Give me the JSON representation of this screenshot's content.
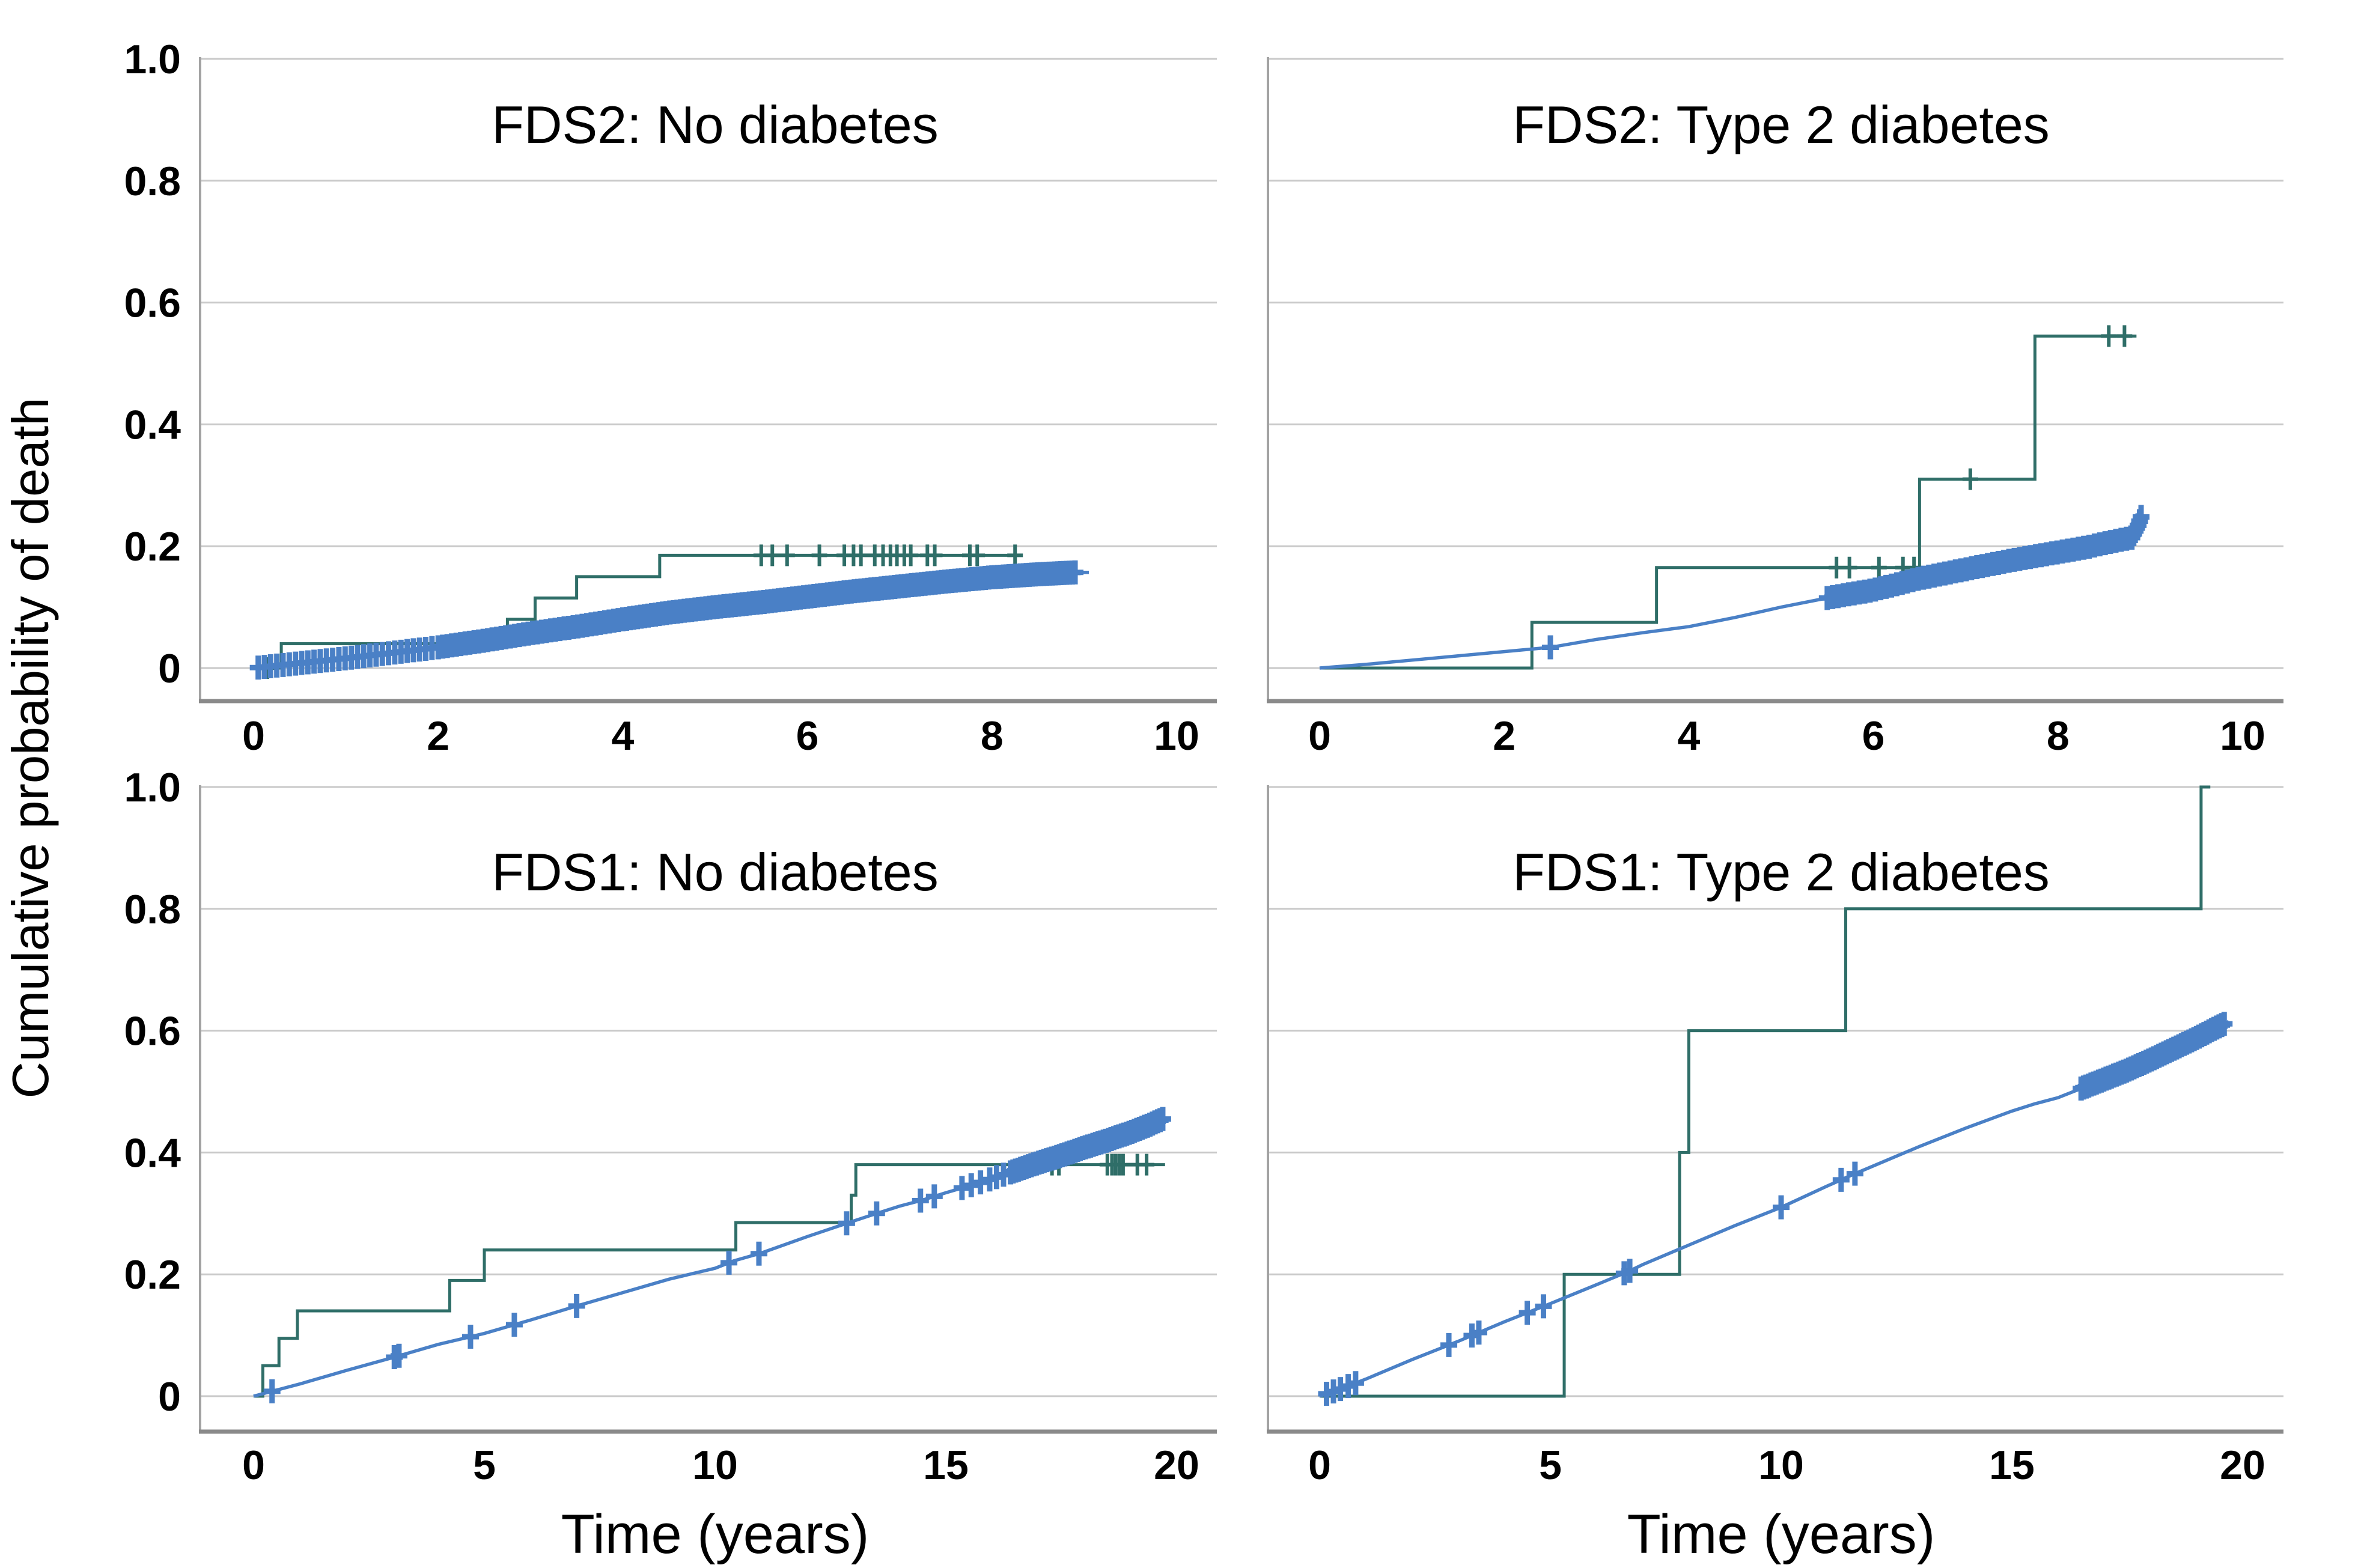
{
  "figure": {
    "y_axis_label": "Cumulative probability of death",
    "x_axis_label": "Time (years)",
    "y_ticks": [
      {
        "value": 1.0,
        "label": "1.0"
      },
      {
        "value": 0.8,
        "label": "0.8"
      },
      {
        "value": 0.6,
        "label": "0.6"
      },
      {
        "value": 0.4,
        "label": "0.4"
      },
      {
        "value": 0.2,
        "label": "0.2"
      },
      {
        "value": 0.0,
        "label": "0"
      }
    ],
    "colors": {
      "step_curve": "#2f6e68",
      "smooth_curve": "#4a80c6",
      "gridline": "#c9c9c9",
      "x_axis_line": "#8a8a8a",
      "y_axis_line": "#a3a3a3",
      "text": "#000000",
      "background": "#ffffff"
    },
    "legend": null,
    "grid": true
  },
  "chart_data": [
    {
      "type": "line",
      "title": "FDS2: No diabetes",
      "xlabel": "",
      "ylabel": "Cumulative probability of death",
      "xlim": [
        0,
        10.5
      ],
      "ylim": [
        0,
        1.0
      ],
      "x_ticks": [
        0,
        2,
        4,
        6,
        8,
        10
      ],
      "y_ticks": [
        0,
        0.2,
        0.4,
        0.6,
        0.8,
        1.0
      ],
      "series": [
        {
          "name": "observed step curve (dark teal)",
          "style": "step",
          "color": "#2f6e68",
          "points": [
            [
              0,
              0
            ],
            [
              0.3,
              0.04
            ],
            [
              2.75,
              0.08
            ],
            [
              3.05,
              0.115
            ],
            [
              3.5,
              0.15
            ],
            [
              4.4,
              0.185
            ],
            [
              8.3,
              0.185
            ]
          ],
          "censor_xs": [
            0.15,
            5.5,
            5.62,
            5.78,
            6.13,
            6.4,
            6.5,
            6.58,
            6.73,
            6.82,
            6.9,
            6.97,
            7.05,
            7.12,
            7.3,
            7.38,
            7.76,
            7.84,
            8.25
          ],
          "censor_bands": []
        },
        {
          "name": "predicted smooth curve (blue)",
          "style": "line",
          "color": "#4a80c6",
          "points": [
            [
              0,
              0
            ],
            [
              0.5,
              0.008
            ],
            [
              1,
              0.016
            ],
            [
              1.5,
              0.025
            ],
            [
              2,
              0.034
            ],
            [
              2.5,
              0.045
            ],
            [
              3,
              0.057
            ],
            [
              3.5,
              0.068
            ],
            [
              4,
              0.08
            ],
            [
              4.5,
              0.091
            ],
            [
              5,
              0.1
            ],
            [
              5.5,
              0.108
            ],
            [
              6,
              0.117
            ],
            [
              6.5,
              0.126
            ],
            [
              7,
              0.134
            ],
            [
              7.5,
              0.142
            ],
            [
              8,
              0.149
            ],
            [
              8.5,
              0.154
            ],
            [
              8.9,
              0.157
            ],
            [
              9.05,
              0.157
            ]
          ],
          "censor_xs": [],
          "censor_bands": [
            {
              "from": 0.05,
              "to": 2.0,
              "n": 30
            },
            {
              "from": 2.0,
              "to": 4.0,
              "n": 42
            },
            {
              "from": 4.0,
              "to": 6.0,
              "n": 52
            },
            {
              "from": 6.0,
              "to": 8.0,
              "n": 56
            },
            {
              "from": 8.0,
              "to": 8.9,
              "n": 30
            }
          ]
        }
      ]
    },
    {
      "type": "line",
      "title": "FDS2: Type 2 diabetes",
      "xlabel": "",
      "ylabel": "Cumulative probability of death",
      "xlim": [
        0,
        10.5
      ],
      "ylim": [
        0,
        1.0
      ],
      "x_ticks": [
        0,
        2,
        4,
        6,
        8,
        10
      ],
      "y_ticks": [
        0,
        0.2,
        0.4,
        0.6,
        0.8,
        1.0
      ],
      "series": [
        {
          "name": "observed step curve (dark teal)",
          "style": "step",
          "color": "#2f6e68",
          "points": [
            [
              0,
              0
            ],
            [
              2.3,
              0.075
            ],
            [
              3.65,
              0.165
            ],
            [
              6.5,
              0.31
            ],
            [
              7.75,
              0.545
            ],
            [
              8.85,
              0.545
            ]
          ],
          "censor_xs": [
            5.6,
            5.74,
            6.06,
            6.32,
            6.44,
            7.05,
            8.55,
            8.72
          ],
          "censor_bands": []
        },
        {
          "name": "predicted smooth curve (blue)",
          "style": "line",
          "color": "#4a80c6",
          "points": [
            [
              0,
              0
            ],
            [
              0.5,
              0.006
            ],
            [
              1,
              0.013
            ],
            [
              1.5,
              0.02
            ],
            [
              2,
              0.027
            ],
            [
              2.5,
              0.034
            ],
            [
              3,
              0.047
            ],
            [
              3.5,
              0.058
            ],
            [
              4,
              0.068
            ],
            [
              4.5,
              0.083
            ],
            [
              5,
              0.1
            ],
            [
              5.5,
              0.115
            ],
            [
              6,
              0.128
            ],
            [
              6.5,
              0.147
            ],
            [
              7,
              0.162
            ],
            [
              7.5,
              0.177
            ],
            [
              8,
              0.19
            ],
            [
              8.3,
              0.198
            ],
            [
              8.6,
              0.208
            ],
            [
              8.8,
              0.214
            ],
            [
              8.87,
              0.235
            ],
            [
              8.9,
              0.248
            ]
          ],
          "censor_xs": [
            2.5
          ],
          "censor_bands": [
            {
              "from": 5.5,
              "to": 8.8,
              "n": 58
            },
            {
              "from": 8.82,
              "to": 8.9,
              "n": 6
            }
          ]
        }
      ]
    },
    {
      "type": "line",
      "title": "FDS1: No diabetes",
      "xlabel": "Time (years)",
      "ylabel": "Cumulative probability of death",
      "xlim": [
        0,
        21
      ],
      "ylim": [
        0,
        1.0
      ],
      "x_ticks": [
        0,
        5,
        10,
        15,
        20
      ],
      "y_ticks": [
        0,
        0.2,
        0.4,
        0.6,
        0.8,
        1.0
      ],
      "series": [
        {
          "name": "observed step curve (dark teal)",
          "style": "step",
          "color": "#2f6e68",
          "points": [
            [
              0,
              0
            ],
            [
              0.2,
              0.05
            ],
            [
              0.55,
              0.095
            ],
            [
              0.95,
              0.14
            ],
            [
              4.25,
              0.19
            ],
            [
              5.0,
              0.24
            ],
            [
              10.45,
              0.285
            ],
            [
              12.95,
              0.33
            ],
            [
              13.05,
              0.38
            ],
            [
              19.75,
              0.38
            ]
          ],
          "censor_xs": [
            17.3,
            17.45,
            18.5,
            18.6,
            18.68,
            18.76,
            18.84,
            19.15,
            19.35
          ],
          "censor_bands": []
        },
        {
          "name": "predicted smooth curve (blue)",
          "style": "line",
          "color": "#4a80c6",
          "points": [
            [
              0,
              0
            ],
            [
              0.4,
              0.008
            ],
            [
              1,
              0.02
            ],
            [
              2,
              0.042
            ],
            [
              3,
              0.063
            ],
            [
              4,
              0.085
            ],
            [
              5,
              0.103
            ],
            [
              6,
              0.125
            ],
            [
              7,
              0.148
            ],
            [
              8,
              0.17
            ],
            [
              9,
              0.192
            ],
            [
              10,
              0.21
            ],
            [
              10.4,
              0.222
            ],
            [
              11,
              0.235
            ],
            [
              12,
              0.262
            ],
            [
              12.9,
              0.285
            ],
            [
              13.5,
              0.3
            ],
            [
              14,
              0.312
            ],
            [
              14.5,
              0.322
            ],
            [
              15,
              0.334
            ],
            [
              15.5,
              0.345
            ],
            [
              16,
              0.357
            ],
            [
              16.5,
              0.37
            ],
            [
              17,
              0.383
            ],
            [
              17.5,
              0.395
            ],
            [
              18,
              0.408
            ],
            [
              18.5,
              0.42
            ],
            [
              19,
              0.433
            ],
            [
              19.4,
              0.445
            ],
            [
              19.7,
              0.455
            ]
          ],
          "censor_xs": [
            0.4,
            3.05,
            3.15,
            4.7,
            5.65,
            7.0,
            10.3,
            10.95,
            12.85,
            13.5,
            14.45,
            14.75,
            15.35,
            15.55,
            15.75,
            15.95,
            16.1,
            16.25
          ],
          "censor_bands": [
            {
              "from": 16.4,
              "to": 19.7,
              "n": 60
            }
          ]
        }
      ]
    },
    {
      "type": "line",
      "title": "FDS1: Type 2 diabetes",
      "xlabel": "Time (years)",
      "ylabel": "Cumulative probability of death",
      "xlim": [
        0,
        21
      ],
      "ylim": [
        0,
        1.0
      ],
      "x_ticks": [
        0,
        5,
        10,
        15,
        20
      ],
      "y_ticks": [
        0,
        0.2,
        0.4,
        0.6,
        0.8,
        1.0
      ],
      "series": [
        {
          "name": "observed step curve (dark teal)",
          "style": "step",
          "color": "#2f6e68",
          "points": [
            [
              0,
              0
            ],
            [
              5.3,
              0.2
            ],
            [
              7.8,
              0.4
            ],
            [
              8.0,
              0.6
            ],
            [
              11.4,
              0.8
            ],
            [
              19.1,
              1.0
            ],
            [
              19.3,
              1.0
            ]
          ],
          "censor_xs": [],
          "censor_bands": []
        },
        {
          "name": "predicted smooth curve (blue)",
          "style": "line",
          "color": "#4a80c6",
          "points": [
            [
              0,
              0
            ],
            [
              0.5,
              0.013
            ],
            [
              1,
              0.028
            ],
            [
              2,
              0.06
            ],
            [
              3,
              0.09
            ],
            [
              4,
              0.122
            ],
            [
              5,
              0.152
            ],
            [
              6,
              0.183
            ],
            [
              6.7,
              0.205
            ],
            [
              7,
              0.216
            ],
            [
              8,
              0.248
            ],
            [
              9,
              0.28
            ],
            [
              10,
              0.31
            ],
            [
              11,
              0.345
            ],
            [
              11.5,
              0.362
            ],
            [
              12,
              0.378
            ],
            [
              13,
              0.41
            ],
            [
              14,
              0.44
            ],
            [
              15,
              0.468
            ],
            [
              15.5,
              0.48
            ],
            [
              16,
              0.49
            ],
            [
              16.5,
              0.505
            ],
            [
              17,
              0.52
            ],
            [
              17.5,
              0.535
            ],
            [
              18,
              0.552
            ],
            [
              18.5,
              0.57
            ],
            [
              19,
              0.588
            ],
            [
              19.3,
              0.6
            ],
            [
              19.7,
              0.615
            ]
          ],
          "censor_xs": [
            0.15,
            0.3,
            0.45,
            0.62,
            0.78,
            2.8,
            3.3,
            3.45,
            4.5,
            4.85,
            6.6,
            6.72,
            10.0,
            11.3,
            11.6
          ],
          "censor_bands": [
            {
              "from": 16.5,
              "to": 19.6,
              "n": 58
            }
          ]
        }
      ]
    }
  ]
}
